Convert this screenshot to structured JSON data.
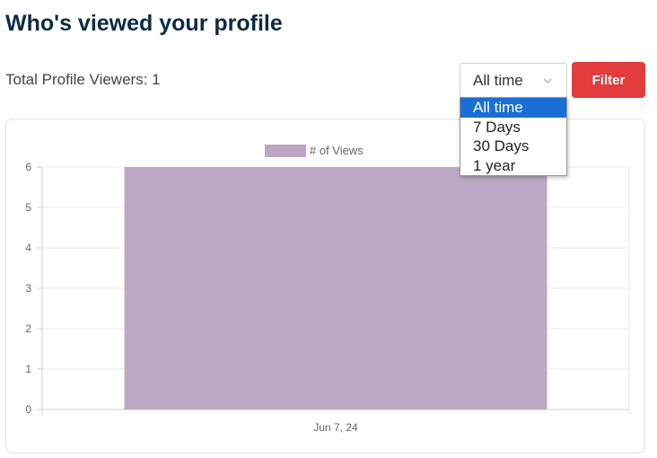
{
  "page": {
    "title": "Who's viewed your profile",
    "total_viewers": "Total Profile Viewers: 1"
  },
  "controls": {
    "range_selected": "All time",
    "range_options": [
      "All time",
      "7 Days",
      "30 Days",
      "1 year"
    ],
    "filter_label": "Filter",
    "chevron_icon": "chevron-down-icon"
  },
  "colors": {
    "title": "#0d2a43",
    "filter_button": "#e23c3c",
    "bar": "#bca8c4",
    "dropdown_highlight": "#1a6ed8"
  },
  "chart_data": {
    "type": "bar",
    "categories": [
      "Jun 7, 24"
    ],
    "series": [
      {
        "name": "# of Views",
        "values": [
          6
        ]
      }
    ],
    "title": "",
    "xlabel": "",
    "ylabel": "",
    "ylim": [
      0,
      6
    ],
    "yticks": [
      0,
      1,
      2,
      3,
      4,
      5,
      6
    ],
    "grid": true,
    "legend": "top-center"
  }
}
